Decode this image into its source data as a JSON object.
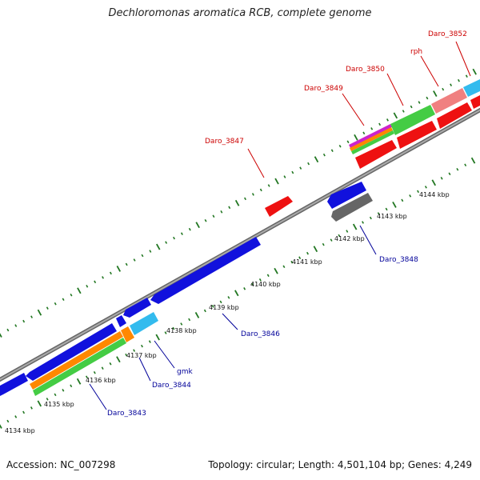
{
  "title": "Dechloromonas aromatica RCB, complete genome",
  "footer": {
    "accession": "Accession: NC_007298",
    "summary": "Topology: circular; Length: 4,501,104 bp; Genes: 4,249"
  },
  "kbp_labels": [
    "4134 kbp",
    "4135 kbp",
    "4136 kbp",
    "4137 kbp",
    "4138 kbp",
    "4139 kbp",
    "4140 kbp",
    "4141 kbp",
    "4142 kbp",
    "4143 kbp",
    "4144 kbp"
  ],
  "gene_labels": [
    {
      "text": "Daro_3852",
      "color": "red"
    },
    {
      "text": "rph",
      "color": "red"
    },
    {
      "text": "Daro_3850",
      "color": "red"
    },
    {
      "text": "Daro_3849",
      "color": "red"
    },
    {
      "text": "Daro_3847",
      "color": "red"
    },
    {
      "text": "Daro_3848",
      "color": "blue"
    },
    {
      "text": "Daro_3846",
      "color": "blue"
    },
    {
      "text": "gmk",
      "color": "blue"
    },
    {
      "text": "Daro_3844",
      "color": "blue"
    },
    {
      "text": "Daro_3843",
      "color": "blue"
    }
  ],
  "colors": {
    "forward_cds": "#ee1111",
    "reverse_cds": "#1111dd",
    "gene_green": "#44cc44",
    "gene_orange": "#ff8800",
    "gene_cyan": "#33bbee",
    "gene_pink": "#f08080",
    "gene_gray": "#666666",
    "backbone": "#888888",
    "tick": "#227722",
    "label_red": "#cc0000",
    "label_blue": "#000099"
  }
}
